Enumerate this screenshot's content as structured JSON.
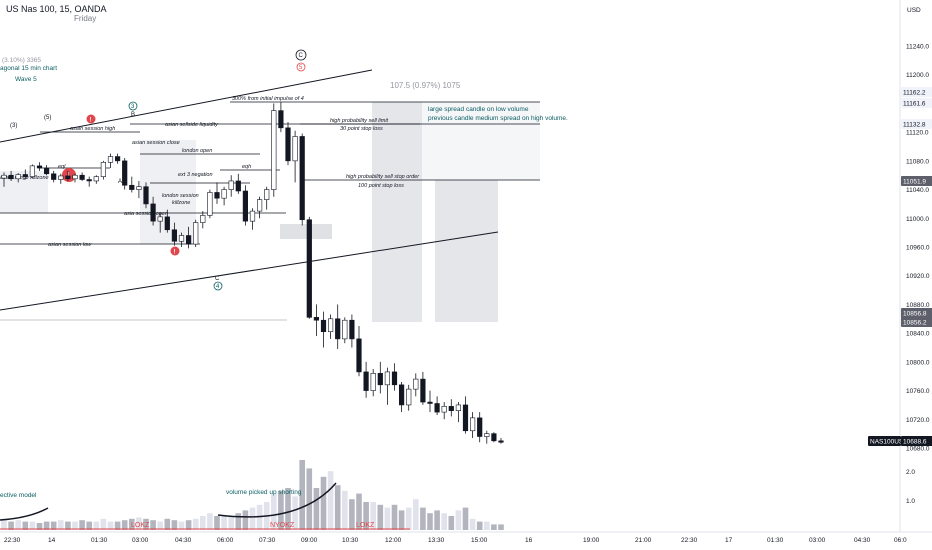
{
  "header": {
    "symbol": "US Nas 100, 15, OANDA",
    "day": "Friday"
  },
  "price_axis": {
    "currency": "USD",
    "ticks": [
      "11240.0",
      "11200.0",
      "11160.0",
      "11120.0",
      "11080.0",
      "11040.0",
      "11000.0",
      "10960.0",
      "10920.0",
      "10880.0",
      "10840.0",
      "10800.0",
      "10760.0",
      "10720.0",
      "10680.0"
    ],
    "volume_ticks": [
      "2.0",
      "1.0"
    ],
    "badges": [
      {
        "label": "11162.2",
        "style": "light"
      },
      {
        "label": "11161.6",
        "style": "light"
      },
      {
        "label": "11132.8",
        "style": "light"
      },
      {
        "label": "11051.9",
        "style": "dark"
      },
      {
        "label": "10856.8",
        "style": "dark"
      },
      {
        "label": "10856.2",
        "style": "dark"
      },
      {
        "label": "NAS100USD",
        "style": "symbol"
      },
      {
        "label": "10688.6",
        "style": "symbol"
      }
    ]
  },
  "time_axis": {
    "labels": [
      "22:30",
      "14",
      "01:30",
      "03:00",
      "04:30",
      "06:00",
      "07:30",
      "09:00",
      "10:30",
      "12:00",
      "13:30",
      "15:00",
      "16",
      "19:00",
      "21:00",
      "22:30",
      "17",
      "01:30",
      "03:00",
      "04:30",
      "06:0"
    ]
  },
  "annotations": {
    "top_left_partial": "(3.10%) 3365",
    "diagonal_label": "agonal 15 min chart",
    "wave5": "Wave 5",
    "measure": "107.5 (0.97%) 1075",
    "note_line1": "large spread candle on low volume",
    "note_line2": "previous candle medium spread on high volume.",
    "impulse": "300% from initial impulse of 4",
    "sell_limit": "high probability sell limit",
    "stop_30": "30 point stop loss",
    "sell_stop": "high probability sell stop order",
    "stop_100": "100 point stop loss",
    "asian_high": "asain session high",
    "asian_sellside": "asian sellside liquidity",
    "asian_close": "asian session close",
    "london_open": "london open",
    "eqh": "eqh",
    "ext3": "ext 3 negation",
    "london_killzone_1": "london session",
    "london_killzone_2": "killzone",
    "asia_open": "asia session open",
    "asian_low": "asian session low",
    "range_killzone": "asain range killzone",
    "eql": "eql",
    "wave_c_top": "C",
    "wave_5": "5",
    "wave_3": "3",
    "wave_b": "B",
    "wave_a": "A",
    "wave_c_low": "C",
    "wave_4": "4",
    "wave_3_left": "(3)",
    "wave_5_left": "(5)",
    "volume_note": "volume picked up shorting",
    "volume_left": "ective model",
    "lokz_1": "LOKZ",
    "nyokz": "NYOKZ",
    "lokz_2": "LOKZ",
    "alert_mark": "!"
  },
  "colors": {
    "bull": "#ffffff",
    "bear": "#131722",
    "grid_zone": "#d1d4dc",
    "teal": "#0b5d63",
    "alert": "#e0464b",
    "volume_bull": "#e0e3eb",
    "volume_bear": "#b2b5be"
  },
  "chart_data": {
    "type": "candlestick",
    "interval": "15",
    "candles": [
      [
        11056,
        11064,
        11044,
        11060
      ],
      [
        11060,
        11066,
        11052,
        11055
      ],
      [
        11055,
        11063,
        11050,
        11061
      ],
      [
        11061,
        11068,
        11054,
        11058
      ],
      [
        11058,
        11075,
        11056,
        11073
      ],
      [
        11073,
        11078,
        11066,
        11070
      ],
      [
        11070,
        11074,
        11060,
        11062
      ],
      [
        11062,
        11066,
        11050,
        11054
      ],
      [
        11054,
        11062,
        11048,
        11059
      ],
      [
        11059,
        11066,
        11052,
        11055
      ],
      [
        11055,
        11062,
        11050,
        11060
      ],
      [
        11060,
        11064,
        11052,
        11054
      ],
      [
        11054,
        11058,
        11044,
        11052
      ],
      [
        11052,
        11060,
        11048,
        11058
      ],
      [
        11058,
        11080,
        11054,
        11078
      ],
      [
        11078,
        11090,
        11070,
        11086
      ],
      [
        11086,
        11090,
        11076,
        11080
      ],
      [
        11080,
        11084,
        11040,
        11046
      ],
      [
        11046,
        11058,
        11036,
        11040
      ],
      [
        11040,
        11052,
        11028,
        11044
      ],
      [
        11044,
        11050,
        11014,
        11020
      ],
      [
        11020,
        11030,
        10990,
        10996
      ],
      [
        10996,
        11008,
        10980,
        11002
      ],
      [
        11002,
        11012,
        10980,
        10984
      ],
      [
        10984,
        10994,
        10962,
        10968
      ],
      [
        10968,
        10980,
        10960,
        10976
      ],
      [
        10976,
        10988,
        10958,
        10964
      ],
      [
        10964,
        10998,
        10960,
        10994
      ],
      [
        10994,
        11010,
        10986,
        11004
      ],
      [
        11004,
        11040,
        11000,
        11036
      ],
      [
        11036,
        11050,
        11020,
        11028
      ],
      [
        11028,
        11044,
        11018,
        11040
      ],
      [
        11040,
        11060,
        11030,
        11052
      ],
      [
        11052,
        11062,
        11034,
        11038
      ],
      [
        11038,
        11046,
        10990,
        10996
      ],
      [
        10996,
        11014,
        10984,
        11010
      ],
      [
        11010,
        11030,
        11000,
        11026
      ],
      [
        11026,
        11044,
        11012,
        11040
      ],
      [
        11040,
        11160,
        11030,
        11150
      ],
      [
        11150,
        11162,
        11120,
        11126
      ],
      [
        11126,
        11134,
        11074,
        11080
      ],
      [
        11080,
        11122,
        11050,
        11114
      ],
      [
        11114,
        11118,
        10990,
        10998
      ],
      [
        10998,
        11002,
        10860,
        10862
      ],
      [
        10862,
        10880,
        10836,
        10858
      ],
      [
        10858,
        10870,
        10820,
        10842
      ],
      [
        10842,
        10866,
        10832,
        10860
      ],
      [
        10860,
        10880,
        10818,
        10832
      ],
      [
        10832,
        10862,
        10826,
        10858
      ],
      [
        10858,
        10866,
        10820,
        10832
      ],
      [
        10832,
        10850,
        10780,
        10786
      ],
      [
        10786,
        10800,
        10750,
        10760
      ],
      [
        10760,
        10790,
        10752,
        10784
      ],
      [
        10784,
        10800,
        10756,
        10768
      ],
      [
        10768,
        10792,
        10740,
        10786
      ],
      [
        10786,
        10798,
        10760,
        10768
      ],
      [
        10768,
        10772,
        10730,
        10740
      ],
      [
        10740,
        10768,
        10732,
        10762
      ],
      [
        10762,
        10784,
        10752,
        10776
      ],
      [
        10776,
        10786,
        10740,
        10744
      ],
      [
        10744,
        10760,
        10730,
        10742
      ],
      [
        10742,
        10752,
        10726,
        10730
      ],
      [
        10730,
        10744,
        10720,
        10738
      ],
      [
        10738,
        10748,
        10724,
        10732
      ],
      [
        10732,
        10744,
        10716,
        10740
      ],
      [
        10740,
        10752,
        10700,
        10704
      ],
      [
        10704,
        10730,
        10694,
        10722
      ],
      [
        10722,
        10730,
        10688,
        10696
      ],
      [
        10696,
        10704,
        10686,
        10700
      ],
      [
        10700,
        10702,
        10688,
        10690
      ],
      [
        10690,
        10694,
        10686,
        10688
      ]
    ],
    "volumes": [
      0.4,
      0.3,
      0.35,
      0.3,
      0.3,
      0.25,
      0.3,
      0.3,
      0.35,
      0.3,
      0.3,
      0.35,
      0.3,
      0.3,
      0.4,
      0.3,
      0.3,
      0.35,
      0.4,
      0.45,
      0.4,
      0.35,
      0.3,
      0.4,
      0.35,
      0.3,
      0.35,
      0.4,
      0.5,
      0.6,
      0.5,
      0.5,
      0.5,
      0.6,
      0.7,
      0.8,
      0.9,
      1.0,
      1.3,
      1.4,
      1.5,
      1.2,
      2.5,
      2.2,
      1.5,
      1.9,
      2.1,
      1.6,
      1.4,
      1.1,
      1.3,
      1.0,
      1.0,
      0.9,
      0.8,
      0.9,
      0.7,
      0.8,
      1.1,
      0.8,
      0.6,
      0.7,
      0.6,
      0.5,
      0.7,
      0.8,
      0.4,
      0.3,
      0.3,
      0.2,
      0.2
    ],
    "ylim": [
      10680,
      11260
    ],
    "xlabel": "",
    "ylabel": ""
  }
}
